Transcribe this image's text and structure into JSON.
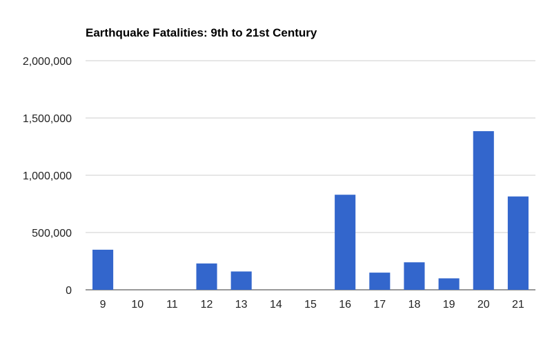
{
  "chart_data": {
    "type": "bar",
    "title": "Earthquake Fatalities: 9th to 21st Century",
    "xlabel": "",
    "ylabel": "",
    "categories": [
      "9",
      "10",
      "11",
      "12",
      "13",
      "14",
      "15",
      "16",
      "17",
      "18",
      "19",
      "20",
      "21"
    ],
    "values": [
      350000,
      0,
      0,
      230000,
      160000,
      0,
      0,
      830000,
      150000,
      240000,
      100000,
      1385000,
      815000
    ],
    "ylim": [
      0,
      2000000
    ],
    "yticks": [
      0,
      500000,
      1000000,
      1500000,
      2000000
    ],
    "ytick_labels": [
      "0",
      "500,000",
      "1,000,000",
      "1,500,000",
      "2,000,000"
    ],
    "grid": true,
    "legend": "none",
    "bar_color": "#3366cc"
  }
}
